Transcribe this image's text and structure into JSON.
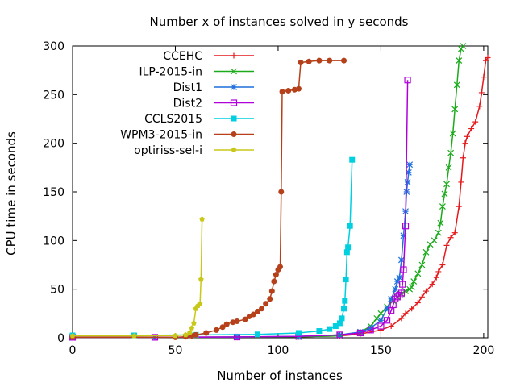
{
  "chart_data": {
    "type": "line",
    "title": "Number x of instances solved in y seconds",
    "xlabel": "Number of instances",
    "ylabel": "CPU time in seconds",
    "xlim": [
      0,
      202
    ],
    "ylim": [
      0,
      300
    ],
    "xticks": [
      0,
      50,
      100,
      150,
      200
    ],
    "yticks": [
      0,
      50,
      100,
      150,
      200,
      250,
      300
    ],
    "grid": false,
    "legend_position": "top-right",
    "series": [
      {
        "name": "CCEHC",
        "color": "#e41a1c",
        "marker": "plus",
        "points": [
          [
            0,
            0.5
          ],
          [
            40,
            0.5
          ],
          [
            80,
            0.8
          ],
          [
            110,
            1
          ],
          [
            130,
            2
          ],
          [
            140,
            4
          ],
          [
            150,
            8
          ],
          [
            155,
            12
          ],
          [
            160,
            20
          ],
          [
            162,
            25
          ],
          [
            165,
            30
          ],
          [
            168,
            36
          ],
          [
            170,
            42
          ],
          [
            172,
            48
          ],
          [
            175,
            55
          ],
          [
            177,
            62
          ],
          [
            178,
            68
          ],
          [
            180,
            75
          ],
          [
            182,
            95
          ],
          [
            184,
            103
          ],
          [
            186,
            108
          ],
          [
            188,
            135
          ],
          [
            189,
            160
          ],
          [
            190,
            185
          ],
          [
            191,
            200
          ],
          [
            192,
            207
          ],
          [
            194,
            215
          ],
          [
            196,
            222
          ],
          [
            198,
            238
          ],
          [
            199,
            252
          ],
          [
            200,
            268
          ],
          [
            201,
            285
          ],
          [
            202,
            288
          ]
        ]
      },
      {
        "name": "ILP-2015-in",
        "color": "#1aaa1a",
        "marker": "x",
        "points": [
          [
            0,
            0.5
          ],
          [
            40,
            0.5
          ],
          [
            80,
            0.6
          ],
          [
            110,
            1
          ],
          [
            130,
            2
          ],
          [
            140,
            6
          ],
          [
            145,
            12
          ],
          [
            148,
            20
          ],
          [
            150,
            25
          ],
          [
            153,
            32
          ],
          [
            156,
            38
          ],
          [
            158,
            42
          ],
          [
            160,
            45
          ],
          [
            162,
            48
          ],
          [
            164,
            50
          ],
          [
            165,
            52
          ],
          [
            166,
            58
          ],
          [
            168,
            66
          ],
          [
            170,
            75
          ],
          [
            172,
            88
          ],
          [
            174,
            96
          ],
          [
            176,
            100
          ],
          [
            178,
            108
          ],
          [
            179,
            118
          ],
          [
            180,
            135
          ],
          [
            181,
            148
          ],
          [
            182,
            158
          ],
          [
            183,
            175
          ],
          [
            184,
            190
          ],
          [
            185,
            210
          ],
          [
            186,
            235
          ],
          [
            187,
            260
          ],
          [
            188,
            285
          ],
          [
            189,
            297
          ],
          [
            190,
            300
          ]
        ]
      },
      {
        "name": "Dist1",
        "color": "#1f6fdc",
        "marker": "star",
        "points": [
          [
            0,
            0.5
          ],
          [
            40,
            0.5
          ],
          [
            80,
            0.8
          ],
          [
            110,
            1.5
          ],
          [
            130,
            3
          ],
          [
            140,
            6
          ],
          [
            145,
            10
          ],
          [
            150,
            18
          ],
          [
            153,
            30
          ],
          [
            155,
            40
          ],
          [
            157,
            50
          ],
          [
            158,
            58
          ],
          [
            159,
            62
          ],
          [
            160,
            80
          ],
          [
            161,
            105
          ],
          [
            162,
            130
          ],
          [
            162.5,
            150
          ],
          [
            163,
            160
          ],
          [
            163.5,
            170
          ],
          [
            164,
            178
          ]
        ]
      },
      {
        "name": "Dist2",
        "color": "#b000d8",
        "marker": "square",
        "points": [
          [
            0,
            0.5
          ],
          [
            40,
            0.5
          ],
          [
            80,
            0.8
          ],
          [
            110,
            1.5
          ],
          [
            130,
            3
          ],
          [
            140,
            5
          ],
          [
            145,
            8
          ],
          [
            150,
            12
          ],
          [
            153,
            18
          ],
          [
            155,
            28
          ],
          [
            156,
            34
          ],
          [
            157,
            40
          ],
          [
            158,
            42
          ],
          [
            159,
            44
          ],
          [
            160,
            46
          ],
          [
            160.5,
            55
          ],
          [
            161,
            70
          ],
          [
            162,
            115
          ],
          [
            163,
            265
          ]
        ]
      },
      {
        "name": "CCLS2015",
        "color": "#00cfe0",
        "marker": "filled-square",
        "points": [
          [
            0,
            2.5
          ],
          [
            30,
            2.5
          ],
          [
            60,
            3
          ],
          [
            90,
            3.5
          ],
          [
            110,
            5
          ],
          [
            120,
            7
          ],
          [
            125,
            9
          ],
          [
            128,
            12
          ],
          [
            130,
            15
          ],
          [
            131,
            20
          ],
          [
            132,
            30
          ],
          [
            132.5,
            38
          ],
          [
            133,
            60
          ],
          [
            133.5,
            88
          ],
          [
            134,
            93
          ],
          [
            135,
            115
          ],
          [
            136,
            183
          ]
        ]
      },
      {
        "name": "WPM3-2015-in",
        "color": "#b5401a",
        "marker": "filled-circle",
        "points": [
          [
            0,
            0.5
          ],
          [
            50,
            0.5
          ],
          [
            55,
            1
          ],
          [
            58,
            2
          ],
          [
            60,
            3
          ],
          [
            65,
            5
          ],
          [
            70,
            8
          ],
          [
            73,
            11
          ],
          [
            75,
            14
          ],
          [
            78,
            16
          ],
          [
            80,
            17
          ],
          [
            84,
            19
          ],
          [
            86,
            22
          ],
          [
            88,
            24
          ],
          [
            90,
            27
          ],
          [
            92,
            30
          ],
          [
            94,
            35
          ],
          [
            96,
            40
          ],
          [
            97,
            48
          ],
          [
            98,
            58
          ],
          [
            99,
            65
          ],
          [
            100,
            70
          ],
          [
            101,
            73
          ],
          [
            101.5,
            150
          ],
          [
            102,
            253
          ],
          [
            105,
            254
          ],
          [
            108,
            255
          ],
          [
            110,
            256
          ],
          [
            111,
            283
          ],
          [
            115,
            284
          ],
          [
            120,
            285
          ],
          [
            125,
            285
          ],
          [
            132,
            285
          ]
        ]
      },
      {
        "name": "optiriss-sel-i",
        "color": "#c8c81a",
        "marker": "filled-pentagon",
        "points": [
          [
            0,
            2
          ],
          [
            30,
            2
          ],
          [
            50,
            2.2
          ],
          [
            55,
            3
          ],
          [
            57,
            5
          ],
          [
            58,
            10
          ],
          [
            59,
            15
          ],
          [
            60,
            30
          ],
          [
            61,
            33
          ],
          [
            62,
            35
          ],
          [
            62.5,
            60
          ],
          [
            63,
            122
          ]
        ]
      }
    ]
  }
}
